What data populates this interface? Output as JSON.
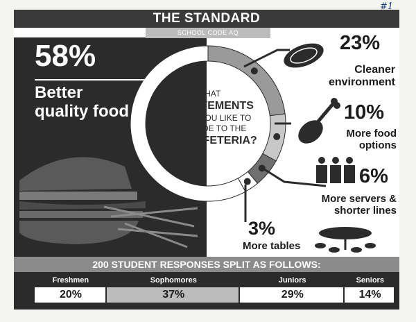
{
  "header": {
    "title": "THE STANDARD",
    "subtitle": "SCHOOL CODE AQ",
    "corner_note": "#1"
  },
  "question": {
    "line1": "WHAT",
    "line2": "IMPROVEMENTS",
    "line3": "WOULD YOU LIKE TO",
    "line4": "SEE MADE TO THE",
    "line5": "AHS CAFETERIA?"
  },
  "colors": {
    "dark": "#2b2b2b",
    "mid": "#8b8b8b",
    "light": "#bcbcbc",
    "white": "#ffffff"
  },
  "chart_data": [
    {
      "type": "pie",
      "title": "",
      "slices": [
        {
          "label": "Better quality food",
          "value": 58,
          "value_label": "58%",
          "color": "#ffffff",
          "icon": "hamburger-icon"
        },
        {
          "label": "Cleaner environment",
          "value": 23,
          "value_label": "23%",
          "color": "#9a9a9a",
          "icon": "plate-icon"
        },
        {
          "label": "More food options",
          "value": 10,
          "value_label": "10%",
          "color": "#c8c8c8",
          "icon": "drumstick-icon"
        },
        {
          "label": "More servers & shorter lines",
          "value": 6,
          "value_label": "6%",
          "color": "#707070",
          "icon": "servers-icon"
        },
        {
          "label": "More tables",
          "value": 3,
          "value_label": "3%",
          "color": "#ffffff",
          "icon": "table-icon"
        }
      ]
    },
    {
      "type": "bar",
      "title": "200 STUDENT RESPONSES SPLIT AS FOLLOWS:",
      "categories": [
        "Freshmen",
        "Sophomores",
        "Juniors",
        "Seniors"
      ],
      "values": [
        20,
        37,
        29,
        14
      ],
      "value_labels": [
        "20%",
        "37%",
        "29%",
        "14%"
      ],
      "colors": [
        "#ffffff",
        "#bcbcbc",
        "#ffffff",
        "#ffffff"
      ]
    }
  ]
}
